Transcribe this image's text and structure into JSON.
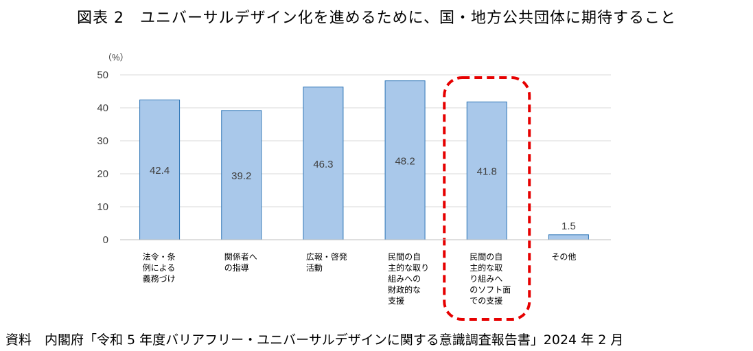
{
  "title": "図表 2　ユニバーサルデザイン化を進めるために、国・地方公共団体に期待すること",
  "source": "資料　内閣府「令和 5 年度バリアフリー・ユニバーサルデザインに関する意識調査報告書」2024 年 2 月",
  "chart_data": {
    "type": "bar",
    "unit_label": "（%）",
    "ylim": [
      0,
      50
    ],
    "yticks": [
      0,
      10,
      20,
      30,
      40,
      50
    ],
    "grid": true,
    "categories": [
      [
        "法令・条",
        "例による",
        "義務づけ"
      ],
      [
        "関係者へ",
        "の指導"
      ],
      [
        "広報・啓発",
        "活動"
      ],
      [
        "民間の自",
        "主的な取り",
        "組みへの",
        "財政的な",
        "支援"
      ],
      [
        "民間の自",
        "主的な取",
        "り組みへ",
        "のソフト面",
        "での支援"
      ],
      [
        "その他"
      ]
    ],
    "values": [
      42.4,
      39.2,
      46.3,
      48.2,
      41.8,
      1.5
    ],
    "bar_color": "#a9c8ea",
    "bar_stroke": "#2e75b6",
    "highlight_index": 4,
    "highlight_color": "#e60000"
  }
}
